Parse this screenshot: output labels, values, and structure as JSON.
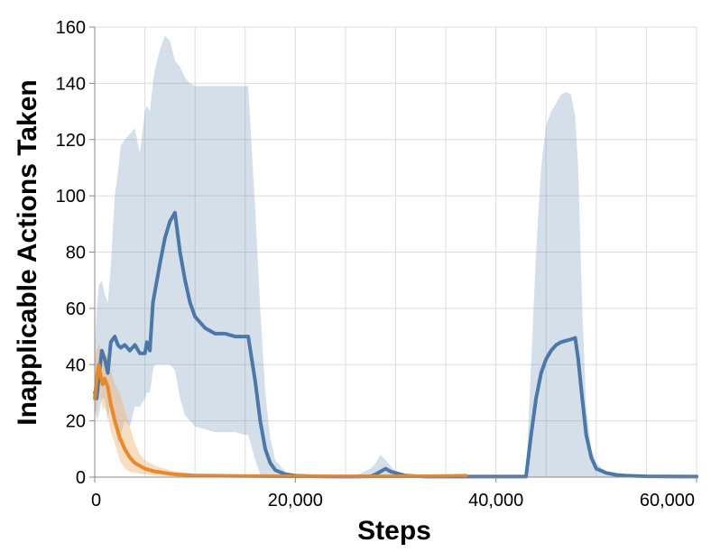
{
  "chart_data": {
    "type": "line",
    "title": "",
    "xlabel": "Steps",
    "ylabel": "Inapplicable Actions Taken",
    "xlim": [
      0,
      60000
    ],
    "ylim": [
      0,
      160
    ],
    "x_ticks": [
      0,
      20000,
      40000,
      60000
    ],
    "x_tick_labels": [
      "0",
      "20,000",
      "40,000",
      "60,000"
    ],
    "y_ticks": [
      0,
      20,
      40,
      60,
      80,
      100,
      120,
      140,
      160
    ],
    "y_tick_labels": [
      "0",
      "20",
      "40",
      "60",
      "80",
      "100",
      "120",
      "140",
      "160"
    ],
    "grid": true,
    "x_grid_step": 5000,
    "legend": "none",
    "series": [
      {
        "color": "#4c78a8",
        "band_color": "#4c78a8",
        "x": [
          0,
          200,
          400,
          700,
          1000,
          1300,
          1600,
          2000,
          2300,
          2600,
          3000,
          3500,
          4000,
          4500,
          5000,
          5200,
          5500,
          5800,
          6000,
          6500,
          7000,
          7500,
          8000,
          8500,
          9000,
          9500,
          10000,
          11000,
          12000,
          13000,
          14000,
          15000,
          15300,
          16000,
          16500,
          17000,
          17500,
          18000,
          19000,
          20000,
          22000,
          24000,
          26000,
          27500,
          28000,
          28500,
          29000,
          29500,
          30000,
          31000,
          33000,
          36000,
          40000,
          43000,
          43500,
          44000,
          44500,
          45000,
          45500,
          46000,
          46500,
          47000,
          47500,
          47900,
          48200,
          48600,
          49000,
          49500,
          50000,
          51000,
          52000,
          53000,
          55000,
          60000
        ],
        "y": [
          30,
          28,
          35,
          45,
          42,
          37,
          48,
          50,
          47,
          46,
          47,
          45,
          47,
          44,
          44,
          48,
          45,
          62,
          66,
          76,
          85,
          91,
          94,
          80,
          70,
          62,
          57,
          53,
          51,
          51,
          50,
          50,
          50,
          34,
          20,
          10,
          5,
          2.5,
          1,
          0.5,
          0.3,
          0.2,
          0.2,
          0.3,
          1,
          2,
          3,
          2,
          1.5,
          0.5,
          0.2,
          0.2,
          0.2,
          0.2,
          15,
          28,
          37,
          42,
          45,
          47,
          48,
          48.5,
          49,
          49.5,
          42,
          28,
          15,
          7,
          3,
          1.5,
          0.8,
          0.5,
          0.3,
          0.2
        ],
        "upper": [
          45,
          60,
          68,
          70,
          65,
          62,
          75,
          100,
          108,
          118,
          120,
          122,
          124,
          115,
          130,
          132,
          130,
          140,
          145,
          152,
          157,
          155,
          148,
          146,
          142,
          140,
          139,
          139,
          139,
          139,
          139,
          139,
          139,
          95,
          60,
          30,
          14,
          6,
          2,
          1,
          0.5,
          0.5,
          0.5,
          3,
          5,
          8,
          6,
          4,
          2,
          1,
          0.5,
          0.5,
          0.3,
          0.3,
          40,
          80,
          110,
          125,
          130,
          133,
          136,
          137,
          136,
          128,
          110,
          60,
          25,
          10,
          5,
          2,
          1,
          0.8,
          0.5,
          0.3
        ],
        "lower": [
          25,
          20,
          22,
          28,
          28,
          20,
          28,
          20,
          12,
          15,
          20,
          18,
          25,
          25,
          28,
          30,
          30,
          38,
          40,
          40,
          40,
          40,
          38,
          28,
          22,
          20,
          18,
          17,
          16,
          16,
          16,
          15,
          15,
          6,
          1,
          0.5,
          0.2,
          0.1,
          0,
          0,
          0,
          0,
          0,
          0,
          0,
          0,
          0.5,
          0,
          0,
          0,
          0,
          0,
          0,
          0,
          0,
          0,
          0,
          0,
          0,
          0,
          0,
          0,
          0,
          0,
          0,
          0,
          0,
          0,
          0,
          0,
          0,
          0,
          0,
          0
        ]
      },
      {
        "color": "#e8892e",
        "band_color": "#f2b476",
        "x": [
          0,
          200,
          400,
          600,
          800,
          1000,
          1300,
          1600,
          2000,
          2500,
          3000,
          3500,
          4000,
          4500,
          5000,
          5500,
          6000,
          6500,
          7000,
          7500,
          8000,
          9000,
          10000,
          12000,
          15000,
          20000,
          25000,
          30000,
          35000,
          37000
        ],
        "y": [
          28,
          35,
          40,
          36,
          33,
          35,
          32,
          26,
          20,
          14,
          10,
          7,
          5,
          4,
          3,
          2.5,
          2,
          1.8,
          1.5,
          1.2,
          1,
          0.8,
          0.6,
          0.5,
          0.4,
          0.3,
          0.3,
          0.3,
          0.4,
          0.5
        ],
        "upper": [
          42,
          45,
          48,
          45,
          42,
          44,
          42,
          38,
          33,
          30,
          24,
          18,
          12,
          8,
          6,
          5,
          4,
          3.5,
          3,
          2.5,
          2,
          1.5,
          1.2,
          1,
          0.8,
          0.6,
          0.6,
          0.6,
          0.8,
          1
        ],
        "lower": [
          22,
          24,
          30,
          28,
          24,
          25,
          22,
          16,
          12,
          6,
          3,
          2,
          1.5,
          1.2,
          1,
          0.8,
          0.6,
          0.5,
          0.4,
          0.3,
          0.2,
          0.1,
          0.1,
          0,
          0,
          0,
          0,
          0,
          0,
          0
        ]
      }
    ]
  }
}
